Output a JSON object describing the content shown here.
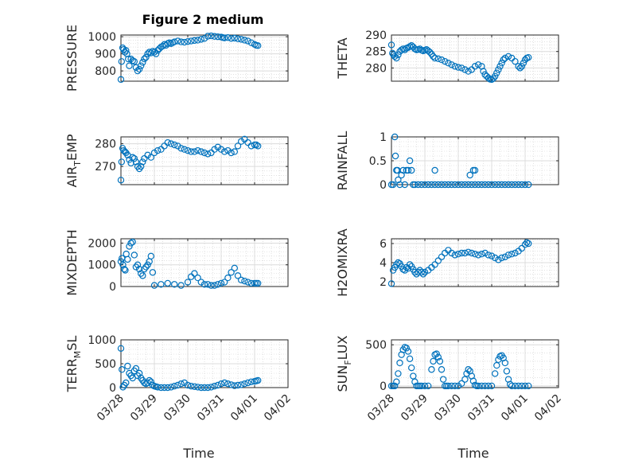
{
  "figure_title": "Figure 2 medium",
  "time_label": "Time",
  "x_ticks": [
    "03/28",
    "03/29",
    "03/30",
    "03/31",
    "04/01",
    "04/02"
  ],
  "chart_data": [
    {
      "type": "scatter",
      "ylabel": "PRESSURE",
      "xlim": [
        0,
        5
      ],
      "ylim": [
        740,
        1010
      ],
      "yticks": [
        800,
        900,
        1000
      ],
      "grid": true,
      "color": "#0072BD",
      "x": [
        0.0,
        0.02,
        0.05,
        0.08,
        0.12,
        0.15,
        0.18,
        0.22,
        0.25,
        0.3,
        0.35,
        0.4,
        0.45,
        0.5,
        0.55,
        0.6,
        0.65,
        0.7,
        0.75,
        0.8,
        0.85,
        0.9,
        0.95,
        1.0,
        1.05,
        1.1,
        1.15,
        1.2,
        1.25,
        1.3,
        1.35,
        1.4,
        1.45,
        1.5,
        1.55,
        1.6,
        1.7,
        1.8,
        1.9,
        2.0,
        2.1,
        2.2,
        2.3,
        2.4,
        2.5,
        2.6,
        2.7,
        2.8,
        2.9,
        3.0,
        3.05,
        3.1,
        3.2,
        3.3,
        3.4,
        3.5,
        3.6,
        3.7,
        3.8,
        3.9,
        4.0,
        4.05,
        4.1
      ],
      "y": [
        750,
        855,
        935,
        925,
        910,
        920,
        900,
        870,
        830,
        870,
        860,
        855,
        820,
        800,
        810,
        830,
        850,
        870,
        880,
        900,
        910,
        905,
        915,
        910,
        900,
        920,
        930,
        940,
        945,
        955,
        950,
        960,
        965,
        960,
        965,
        970,
        975,
        970,
        968,
        972,
        975,
        978,
        980,
        985,
        990,
        1003,
        1005,
        1002,
        1000,
        998,
        995,
        993,
        995,
        990,
        992,
        988,
        985,
        980,
        975,
        965,
        955,
        950,
        948
      ]
    },
    {
      "type": "scatter",
      "ylabel": "THETA",
      "xlim": [
        0,
        5
      ],
      "ylim": [
        276,
        290
      ],
      "yticks": [
        280,
        285,
        290
      ],
      "grid": true,
      "color": "#0072BD",
      "x": [
        0.0,
        0.03,
        0.06,
        0.1,
        0.15,
        0.2,
        0.25,
        0.3,
        0.35,
        0.4,
        0.45,
        0.5,
        0.55,
        0.6,
        0.65,
        0.7,
        0.75,
        0.8,
        0.85,
        0.9,
        0.95,
        1.0,
        1.05,
        1.1,
        1.15,
        1.2,
        1.25,
        1.3,
        1.4,
        1.5,
        1.6,
        1.7,
        1.8,
        1.9,
        2.0,
        2.1,
        2.2,
        2.3,
        2.4,
        2.5,
        2.6,
        2.7,
        2.75,
        2.8,
        2.85,
        2.9,
        2.95,
        3.0,
        3.05,
        3.1,
        3.15,
        3.2,
        3.25,
        3.3,
        3.35,
        3.4,
        3.5,
        3.6,
        3.7,
        3.8,
        3.85,
        3.9,
        3.95,
        4.0,
        4.05,
        4.1
      ],
      "y": [
        287,
        284.5,
        284,
        283.5,
        283,
        284,
        285,
        285.5,
        285.8,
        285.5,
        286,
        286.2,
        286.5,
        286.8,
        286.4,
        285.8,
        285.5,
        285.6,
        285.8,
        285.4,
        285.2,
        285.4,
        285.6,
        285.2,
        284.8,
        284.2,
        283.5,
        283,
        282.8,
        282.5,
        282,
        281.5,
        281,
        280.5,
        280.2,
        280,
        279.5,
        279,
        279.5,
        280.5,
        281,
        280.5,
        279,
        278,
        277.5,
        277,
        276.6,
        276.5,
        276.8,
        277.5,
        278.5,
        279.5,
        280.5,
        281.5,
        282.5,
        283,
        283.5,
        283,
        282,
        280.5,
        280,
        280.5,
        281.5,
        282.5,
        283,
        283.2
      ]
    },
    {
      "type": "scatter",
      "ylabel": "AIR_TEMP",
      "xlim": [
        0,
        5
      ],
      "ylim": [
        262,
        283
      ],
      "yticks": [
        270,
        280
      ],
      "grid": true,
      "color": "#0072BD",
      "x": [
        0.0,
        0.02,
        0.05,
        0.08,
        0.12,
        0.15,
        0.2,
        0.25,
        0.3,
        0.35,
        0.4,
        0.45,
        0.5,
        0.55,
        0.6,
        0.65,
        0.7,
        0.8,
        0.9,
        1.0,
        1.1,
        1.2,
        1.3,
        1.4,
        1.5,
        1.6,
        1.7,
        1.8,
        1.9,
        2.0,
        2.1,
        2.2,
        2.3,
        2.4,
        2.5,
        2.6,
        2.7,
        2.8,
        2.9,
        3.0,
        3.1,
        3.2,
        3.3,
        3.4,
        3.5,
        3.6,
        3.7,
        3.8,
        3.9,
        4.0,
        4.05,
        4.1
      ],
      "y": [
        264,
        272,
        278,
        277,
        276.5,
        276,
        275,
        273,
        271.5,
        274,
        273.5,
        272,
        270,
        269,
        270,
        272,
        273.5,
        275,
        274,
        276,
        277,
        277.5,
        279,
        280.5,
        280,
        279.5,
        279,
        278,
        277.5,
        277,
        276.5,
        276.5,
        277,
        276.5,
        276,
        275.5,
        276,
        277.5,
        278.5,
        277.5,
        276.5,
        277,
        276,
        276.5,
        279,
        281,
        282,
        280.5,
        279,
        279.5,
        279.5,
        279
      ]
    },
    {
      "type": "scatter",
      "ylabel": "RAINFALL",
      "xlim": [
        0,
        5
      ],
      "ylim": [
        0,
        1
      ],
      "yticks": [
        0,
        0.5,
        1
      ],
      "grid": true,
      "color": "#0072BD",
      "x": [
        0.0,
        0.05,
        0.1,
        0.12,
        0.15,
        0.18,
        0.2,
        0.25,
        0.3,
        0.35,
        0.4,
        0.45,
        0.5,
        0.55,
        0.6,
        0.65,
        0.7,
        0.8,
        0.9,
        1.0,
        1.1,
        1.2,
        1.3,
        1.4,
        1.5,
        1.6,
        1.7,
        1.8,
        1.9,
        2.0,
        2.1,
        2.2,
        2.3,
        2.4,
        2.5,
        2.6,
        2.7,
        2.8,
        2.9,
        3.0,
        3.1,
        3.2,
        3.3,
        3.4,
        3.5,
        3.6,
        3.7,
        3.8,
        3.9,
        4.0,
        4.1,
        1.3,
        2.35,
        2.45,
        2.5
      ],
      "y": [
        0,
        0,
        1,
        0.6,
        0.3,
        0.3,
        0.1,
        0,
        0.2,
        0.3,
        0,
        0.3,
        0.3,
        0.5,
        0.3,
        0,
        0,
        0,
        0,
        0,
        0,
        0,
        0,
        0,
        0,
        0,
        0,
        0,
        0,
        0,
        0,
        0,
        0,
        0,
        0,
        0,
        0,
        0,
        0,
        0,
        0,
        0,
        0,
        0,
        0,
        0,
        0,
        0,
        0,
        0,
        0,
        0.3,
        0.2,
        0.3,
        0.3
      ]
    },
    {
      "type": "scatter",
      "ylabel": "MIXDEPTH",
      "xlim": [
        0,
        5
      ],
      "ylim": [
        0,
        2200
      ],
      "yticks": [
        0,
        1000,
        2000
      ],
      "grid": true,
      "color": "#0072BD",
      "x": [
        0.0,
        0.03,
        0.06,
        0.1,
        0.13,
        0.16,
        0.2,
        0.25,
        0.3,
        0.35,
        0.4,
        0.45,
        0.5,
        0.55,
        0.6,
        0.65,
        0.7,
        0.75,
        0.8,
        0.85,
        0.9,
        0.95,
        1.0,
        1.2,
        1.4,
        1.6,
        1.8,
        2.0,
        2.1,
        2.2,
        2.3,
        2.4,
        2.5,
        2.6,
        2.7,
        2.8,
        2.9,
        3.0,
        3.1,
        3.2,
        3.3,
        3.4,
        3.5,
        3.6,
        3.7,
        3.8,
        3.9,
        4.0,
        4.05,
        4.1
      ],
      "y": [
        1150,
        1300,
        1000,
        800,
        750,
        1500,
        1250,
        1850,
        2000,
        2050,
        1450,
        900,
        1000,
        800,
        600,
        500,
        800,
        900,
        1000,
        1150,
        1400,
        650,
        50,
        100,
        150,
        100,
        50,
        200,
        450,
        600,
        400,
        200,
        100,
        100,
        50,
        50,
        100,
        150,
        200,
        400,
        650,
        850,
        500,
        300,
        250,
        200,
        150,
        150,
        150,
        150
      ]
    },
    {
      "type": "scatter",
      "ylabel": "H2OMIXRA",
      "xlim": [
        0,
        5
      ],
      "ylim": [
        1.5,
        6.5
      ],
      "yticks": [
        2,
        4,
        6
      ],
      "grid": true,
      "color": "#0072BD",
      "x": [
        0.0,
        0.05,
        0.1,
        0.15,
        0.2,
        0.25,
        0.3,
        0.35,
        0.4,
        0.45,
        0.5,
        0.55,
        0.6,
        0.65,
        0.7,
        0.75,
        0.8,
        0.85,
        0.9,
        0.95,
        1.0,
        1.1,
        1.2,
        1.3,
        1.4,
        1.5,
        1.6,
        1.7,
        1.8,
        1.9,
        2.0,
        2.1,
        2.2,
        2.3,
        2.4,
        2.5,
        2.6,
        2.7,
        2.8,
        2.9,
        3.0,
        3.1,
        3.2,
        3.3,
        3.4,
        3.5,
        3.6,
        3.7,
        3.8,
        3.9,
        4.0,
        4.05,
        4.1
      ],
      "y": [
        1.8,
        3.2,
        3.5,
        3.8,
        4.0,
        3.9,
        3.6,
        3.3,
        3.2,
        3.5,
        3.4,
        3.8,
        3.6,
        3.3,
        3.0,
        2.8,
        3.0,
        3.2,
        3.0,
        2.8,
        3.0,
        3.2,
        3.5,
        3.8,
        4.2,
        4.6,
        5.0,
        5.3,
        5.0,
        4.8,
        4.9,
        5.0,
        5.0,
        5.1,
        5.0,
        4.9,
        4.8,
        4.9,
        5.0,
        4.8,
        4.7,
        4.5,
        4.3,
        4.5,
        4.6,
        4.8,
        4.9,
        5.0,
        5.2,
        5.5,
        5.9,
        6.1,
        6.0
      ]
    },
    {
      "type": "scatter",
      "ylabel": "TERR_MSL",
      "xlim": [
        0,
        5
      ],
      "ylim": [
        0,
        1000
      ],
      "yticks": [
        0,
        500,
        1000
      ],
      "grid": true,
      "color": "#0072BD",
      "x": [
        0.0,
        0.03,
        0.06,
        0.1,
        0.15,
        0.2,
        0.25,
        0.3,
        0.35,
        0.4,
        0.45,
        0.5,
        0.55,
        0.6,
        0.65,
        0.7,
        0.75,
        0.8,
        0.85,
        0.9,
        0.95,
        1.0,
        1.05,
        1.1,
        1.2,
        1.3,
        1.4,
        1.5,
        1.6,
        1.7,
        1.8,
        1.9,
        2.0,
        2.1,
        2.2,
        2.3,
        2.4,
        2.5,
        2.6,
        2.7,
        2.8,
        2.9,
        3.0,
        3.1,
        3.2,
        3.3,
        3.4,
        3.5,
        3.6,
        3.7,
        3.8,
        3.9,
        4.0,
        4.05,
        4.1
      ],
      "y": [
        820,
        380,
        10,
        50,
        100,
        450,
        300,
        250,
        200,
        350,
        400,
        250,
        300,
        200,
        150,
        100,
        80,
        100,
        150,
        120,
        50,
        30,
        20,
        10,
        0,
        0,
        0,
        10,
        30,
        50,
        80,
        100,
        50,
        30,
        20,
        10,
        0,
        0,
        0,
        10,
        30,
        50,
        80,
        100,
        80,
        60,
        40,
        50,
        60,
        80,
        100,
        120,
        130,
        140,
        150
      ]
    },
    {
      "type": "scatter",
      "ylabel": "SUN_FLUX",
      "xlim": [
        0,
        5
      ],
      "ylim": [
        -20,
        560
      ],
      "yticks": [
        0,
        500
      ],
      "grid": true,
      "color": "#0072BD",
      "x": [
        0.0,
        0.05,
        0.1,
        0.15,
        0.2,
        0.25,
        0.3,
        0.35,
        0.4,
        0.45,
        0.5,
        0.55,
        0.6,
        0.65,
        0.7,
        0.75,
        0.8,
        0.85,
        0.9,
        1.0,
        1.1,
        1.2,
        1.25,
        1.3,
        1.35,
        1.4,
        1.45,
        1.5,
        1.55,
        1.6,
        1.65,
        1.7,
        1.8,
        1.9,
        2.0,
        2.1,
        2.2,
        2.25,
        2.3,
        2.35,
        2.4,
        2.45,
        2.5,
        2.55,
        2.6,
        2.7,
        2.8,
        2.9,
        3.0,
        3.1,
        3.15,
        3.2,
        3.25,
        3.3,
        3.35,
        3.4,
        3.45,
        3.5,
        3.55,
        3.6,
        3.7,
        3.8,
        3.9,
        4.0,
        4.1
      ],
      "y": [
        0,
        0,
        0,
        50,
        150,
        280,
        380,
        440,
        470,
        460,
        420,
        330,
        220,
        120,
        50,
        0,
        0,
        0,
        0,
        0,
        0,
        200,
        300,
        380,
        390,
        350,
        300,
        200,
        80,
        0,
        0,
        0,
        0,
        0,
        0,
        30,
        80,
        150,
        200,
        180,
        120,
        60,
        10,
        0,
        0,
        0,
        0,
        0,
        0,
        150,
        250,
        320,
        360,
        370,
        340,
        280,
        180,
        80,
        20,
        0,
        0,
        0,
        0,
        0,
        0
      ]
    }
  ]
}
